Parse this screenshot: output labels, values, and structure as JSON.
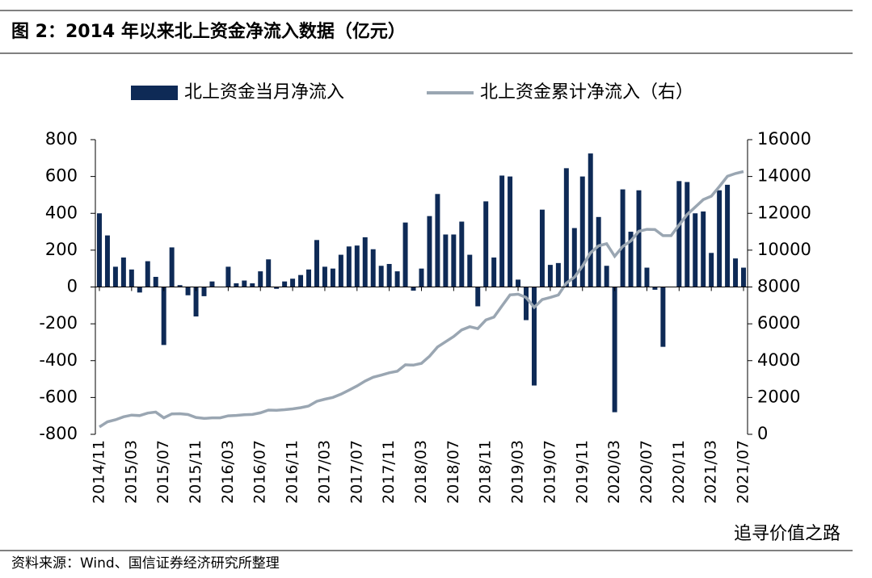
{
  "chart_data": {
    "type": "bar_line",
    "title": "图 2：2014 年以来北上资金净流入数据（亿元）",
    "source": "资料来源：Wind、国信证券经济研究所整理",
    "watermark": "追寻价值之路",
    "categories": [
      "2014/11",
      null,
      null,
      null,
      "2015/03",
      null,
      null,
      null,
      "2015/07",
      null,
      null,
      null,
      "2015/11",
      null,
      null,
      null,
      "2016/03",
      null,
      null,
      null,
      "2016/07",
      null,
      null,
      null,
      "2016/11",
      null,
      null,
      null,
      "2017/03",
      null,
      null,
      null,
      "2017/07",
      null,
      null,
      null,
      "2017/11",
      null,
      null,
      null,
      "2018/03",
      null,
      null,
      null,
      "2018/07",
      null,
      null,
      null,
      "2018/11",
      null,
      null,
      null,
      "2019/03",
      null,
      null,
      null,
      "2019/07",
      null,
      null,
      null,
      "2019/11",
      null,
      null,
      null,
      "2020/03",
      null,
      null,
      null,
      "2020/07",
      null,
      null,
      null,
      "2020/11",
      null,
      null,
      null,
      "2021/03",
      null,
      null,
      null,
      "2021/07"
    ],
    "series": [
      {
        "name": "北上资金当月净流入",
        "color": "#0e2a56",
        "axis": "y",
        "values": [
          400,
          280,
          110,
          160,
          95,
          -30,
          140,
          55,
          -315,
          215,
          10,
          -45,
          -160,
          -50,
          30,
          0,
          110,
          20,
          35,
          20,
          85,
          150,
          -10,
          30,
          45,
          65,
          95,
          255,
          110,
          100,
          175,
          220,
          225,
          270,
          205,
          115,
          125,
          85,
          350,
          -20,
          100,
          385,
          505,
          285,
          285,
          355,
          175,
          -105,
          465,
          160,
          605,
          600,
          40,
          -180,
          -535,
          420,
          120,
          130,
          645,
          320,
          600,
          725,
          380,
          115,
          -680,
          530,
          300,
          525,
          105,
          -15,
          -325,
          0,
          575,
          570,
          400,
          410,
          185,
          525,
          555,
          155,
          105
        ]
      },
      {
        "name": "北上资金累计净流入（右）",
        "color": "#9aa6b2",
        "axis": "y2",
        "values": [
          400,
          680,
          790,
          950,
          1045,
          1015,
          1155,
          1210,
          895,
          1110,
          1120,
          1075,
          915,
          865,
          895,
          895,
          1005,
          1025,
          1060,
          1080,
          1165,
          1315,
          1305,
          1335,
          1380,
          1445,
          1540,
          1795,
          1905,
          2005,
          2180,
          2400,
          2625,
          2895,
          3100,
          3215,
          3340,
          3425,
          3775,
          3755,
          3855,
          4240,
          4745,
          5030,
          5315,
          5670,
          5845,
          5740,
          6205,
          6365,
          6970,
          7570,
          7610,
          7430,
          6895,
          7315,
          7435,
          7565,
          8210,
          8530,
          9130,
          9855,
          10235,
          10350,
          9670,
          10200,
          10500,
          11025,
          11130,
          11115,
          10790,
          10790,
          11365,
          11935,
          12335,
          12745,
          12930,
          13455,
          14010,
          14165,
          14270
        ]
      }
    ],
    "ylim": [
      -800,
      800
    ],
    "yticks": [
      -800,
      -600,
      -400,
      -200,
      0,
      200,
      400,
      600,
      800
    ],
    "y2lim": [
      0,
      16000
    ],
    "y2ticks": [
      0,
      2000,
      4000,
      6000,
      8000,
      10000,
      12000,
      14000,
      16000
    ],
    "legend": "top"
  }
}
